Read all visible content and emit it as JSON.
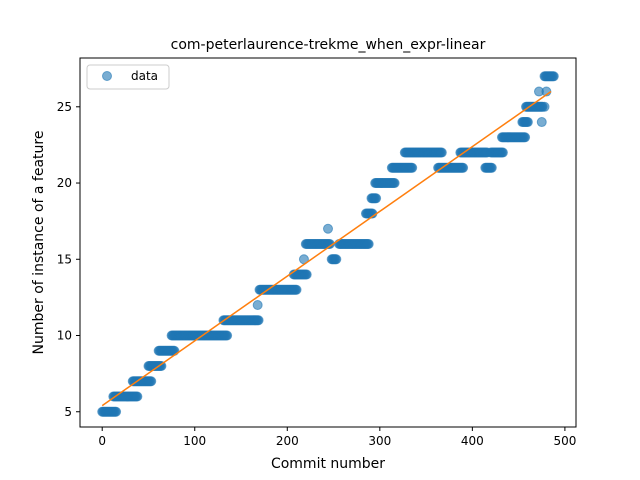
{
  "chart_data": {
    "type": "scatter",
    "title": "com-peterlaurence-trekme_when_expr-linear",
    "xlabel": "Commit number",
    "ylabel": "Number of instance of a feature",
    "xlim": [
      -24,
      512
    ],
    "ylim": [
      4.0,
      28.2
    ],
    "xticks": [
      0,
      100,
      200,
      300,
      400,
      500
    ],
    "yticks": [
      5,
      10,
      15,
      20,
      25
    ],
    "grid": false,
    "legend_position": "top-left",
    "series": [
      {
        "name": "data",
        "kind": "points",
        "color": "#1f77b4",
        "segments": [
          {
            "x0": 0,
            "x1": 15,
            "y": 5
          },
          {
            "x0": 12,
            "x1": 38,
            "y": 6
          },
          {
            "x0": 33,
            "x1": 53,
            "y": 7
          },
          {
            "x0": 50,
            "x1": 64,
            "y": 8
          },
          {
            "x0": 61,
            "x1": 78,
            "y": 9
          },
          {
            "x0": 75,
            "x1": 135,
            "y": 10
          },
          {
            "x0": 131,
            "x1": 169,
            "y": 11
          },
          {
            "x0": 170,
            "x1": 210,
            "y": 13
          },
          {
            "x0": 207,
            "x1": 221,
            "y": 14
          },
          {
            "x0": 220,
            "x1": 246,
            "y": 16
          },
          {
            "x0": 256,
            "x1": 288,
            "y": 16
          },
          {
            "x0": 248,
            "x1": 253,
            "y": 15
          },
          {
            "x0": 285,
            "x1": 292,
            "y": 18
          },
          {
            "x0": 291,
            "x1": 296,
            "y": 19
          },
          {
            "x0": 295,
            "x1": 316,
            "y": 20
          },
          {
            "x0": 313,
            "x1": 335,
            "y": 21
          },
          {
            "x0": 327,
            "x1": 367,
            "y": 22
          },
          {
            "x0": 363,
            "x1": 390,
            "y": 21
          },
          {
            "x0": 387,
            "x1": 416,
            "y": 22
          },
          {
            "x0": 414,
            "x1": 421,
            "y": 21
          },
          {
            "x0": 420,
            "x1": 433,
            "y": 22
          },
          {
            "x0": 432,
            "x1": 457,
            "y": 23
          },
          {
            "x0": 454,
            "x1": 460,
            "y": 24
          },
          {
            "x0": 458,
            "x1": 476,
            "y": 25
          },
          {
            "x0": 478,
            "x1": 488,
            "y": 27
          }
        ],
        "points": [
          {
            "x": 168,
            "y": 12
          },
          {
            "x": 218,
            "y": 15
          },
          {
            "x": 244,
            "y": 17
          },
          {
            "x": 472,
            "y": 26
          },
          {
            "x": 475,
            "y": 24
          },
          {
            "x": 478,
            "y": 25
          },
          {
            "x": 480,
            "y": 26
          }
        ]
      },
      {
        "name": "",
        "kind": "line",
        "color": "#ff7f0e",
        "x": [
          0,
          485
        ],
        "y": [
          5.4,
          26.0
        ]
      }
    ]
  }
}
